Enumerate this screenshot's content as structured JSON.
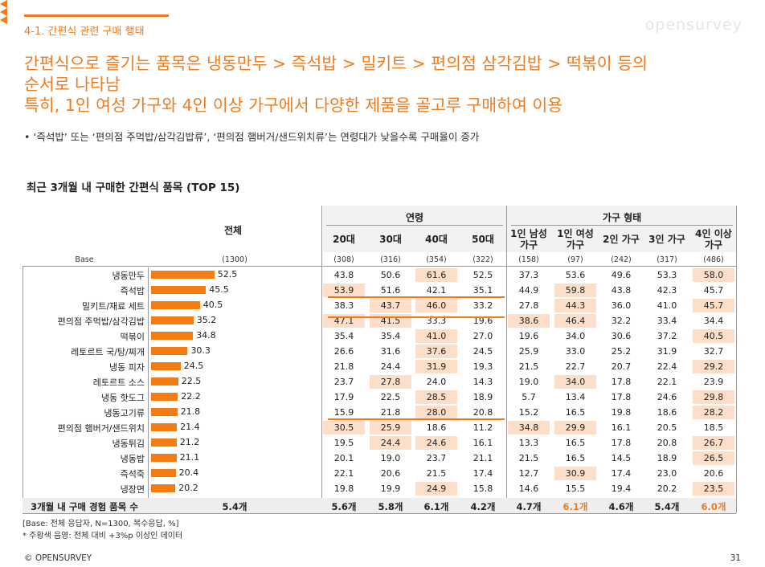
{
  "section_label": "4-1. 간편식 관련 구매 행태",
  "brand": "opensurvey",
  "headline": [
    "간편식으로 즐기는 품목은 냉동만두 > 즉석밥 > 밀키트 > 편의점 삼각김밥 > 떡볶이 등의",
    "순서로 나타남",
    "특히, 1인 여성 가구와 4인 이상 가구에서 다양한 제품을 골고루 구매하여 이용"
  ],
  "bullet": "•  ‘즉석밥’ 또는 ‘편의점 주먹밥/삼각김밥류’, ‘편의점 햄버거/샌드위치류’는 연령대가 낮을수록 구매율이 증가",
  "table_title": "최근 3개월 내 구매한 간편식 품목 (TOP 15)",
  "header": {
    "total": "전체",
    "age_group": "연령",
    "household_group": "가구 형태",
    "base_label": "Base",
    "columns": [
      "20대",
      "30대",
      "40대",
      "50대",
      "1인 남성\n가구",
      "1인 여성\n가구",
      "2인 가구",
      "3인 가구",
      "4인 이상\n가구"
    ],
    "base_total": "(1300)",
    "bases": [
      "(308)",
      "(316)",
      "(354)",
      "(322)",
      "(158)",
      "(97)",
      "(242)",
      "(317)",
      "(486)"
    ]
  },
  "rows": [
    {
      "label": "냉동만두",
      "total": "52.5",
      "values": [
        "43.8",
        "50.6",
        "61.6",
        "52.5",
        "37.3",
        "53.6",
        "49.6",
        "53.3",
        "58.0"
      ],
      "hl": [
        2,
        8
      ]
    },
    {
      "label": "즉석밥",
      "total": "45.5",
      "values": [
        "53.9",
        "51.6",
        "42.1",
        "35.1",
        "44.9",
        "59.8",
        "43.8",
        "42.3",
        "45.7"
      ],
      "hl": [
        0,
        5
      ]
    },
    {
      "label": "밀키트/재료 세트",
      "total": "40.5",
      "values": [
        "38.3",
        "43.7",
        "46.0",
        "33.2",
        "27.8",
        "44.3",
        "36.0",
        "41.0",
        "45.7"
      ],
      "hl": [
        1,
        2,
        5,
        8
      ]
    },
    {
      "label": "편의점 주먹밥/삼각김밥",
      "total": "35.2",
      "values": [
        "47.1",
        "41.5",
        "33.3",
        "19.6",
        "38.6",
        "46.4",
        "32.2",
        "33.4",
        "34.4"
      ],
      "hl": [
        0,
        1,
        4,
        5
      ]
    },
    {
      "label": "떡볶이",
      "total": "34.8",
      "values": [
        "35.4",
        "35.4",
        "41.0",
        "27.0",
        "19.6",
        "34.0",
        "30.6",
        "37.2",
        "40.5"
      ],
      "hl": [
        2,
        8
      ]
    },
    {
      "label": "레토르트 국/탕/찌개",
      "total": "30.3",
      "values": [
        "26.6",
        "31.6",
        "37.6",
        "24.5",
        "25.9",
        "33.0",
        "25.2",
        "31.9",
        "32.7"
      ],
      "hl": [
        2
      ]
    },
    {
      "label": "냉동 피자",
      "total": "24.5",
      "values": [
        "21.8",
        "24.4",
        "31.9",
        "19.3",
        "21.5",
        "22.7",
        "20.7",
        "22.4",
        "29.2"
      ],
      "hl": [
        2,
        8
      ]
    },
    {
      "label": "레토르트 소스",
      "total": "22.5",
      "values": [
        "23.7",
        "27.8",
        "24.0",
        "14.3",
        "19.0",
        "34.0",
        "17.8",
        "22.1",
        "23.9"
      ],
      "hl": [
        1,
        5
      ]
    },
    {
      "label": "냉동 핫도그",
      "total": "22.2",
      "values": [
        "17.9",
        "22.5",
        "28.5",
        "18.9",
        "5.7",
        "13.4",
        "17.8",
        "24.6",
        "29.8"
      ],
      "hl": [
        2,
        8
      ]
    },
    {
      "label": "냉동고기류",
      "total": "21.8",
      "values": [
        "15.9",
        "21.8",
        "28.0",
        "20.8",
        "15.2",
        "16.5",
        "19.8",
        "18.6",
        "28.2"
      ],
      "hl": [
        2,
        8
      ]
    },
    {
      "label": "편의점 햄버거/샌드위치",
      "total": "21.4",
      "values": [
        "30.5",
        "25.9",
        "18.6",
        "11.2",
        "34.8",
        "29.9",
        "16.1",
        "20.5",
        "18.5"
      ],
      "hl": [
        0,
        1,
        4,
        5
      ]
    },
    {
      "label": "냉동튀김",
      "total": "21.2",
      "values": [
        "19.5",
        "24.4",
        "24.6",
        "16.1",
        "13.3",
        "16.5",
        "17.8",
        "20.8",
        "26.7"
      ],
      "hl": [
        1,
        2,
        8
      ]
    },
    {
      "label": "냉동밥",
      "total": "21.1",
      "values": [
        "20.1",
        "19.0",
        "23.7",
        "21.1",
        "21.5",
        "16.5",
        "14.5",
        "18.9",
        "26.5"
      ],
      "hl": [
        8
      ]
    },
    {
      "label": "즉석죽",
      "total": "20.4",
      "values": [
        "22.1",
        "20.6",
        "21.5",
        "17.4",
        "12.7",
        "30.9",
        "17.4",
        "23.0",
        "20.6"
      ],
      "hl": [
        5
      ]
    },
    {
      "label": "냉장면",
      "total": "20.2",
      "values": [
        "19.8",
        "19.9",
        "24.9",
        "15.8",
        "14.6",
        "15.5",
        "19.4",
        "20.2",
        "23.5"
      ],
      "hl": [
        2,
        8
      ]
    }
  ],
  "footer": {
    "label": "3개월 내 구매 경험 품목 수",
    "total": "5.4개",
    "values": [
      "5.6개",
      "5.8개",
      "6.1개",
      "4.2개",
      "4.7개",
      "6.1개",
      "4.6개",
      "5.4개",
      "6.0개"
    ],
    "orange": [
      5,
      8
    ]
  },
  "notes": [
    "[Base: 전체 응답자, N=1300, 복수응답, %]",
    "* 주황색 음영: 전체 대비 +3%p 이상인 데이터"
  ],
  "copyright": "© OPENSURVEY",
  "page_number": "31",
  "colors": {
    "accent": "#f07b1d",
    "bar": "#f57c12",
    "highlight": "#fddfc9"
  }
}
